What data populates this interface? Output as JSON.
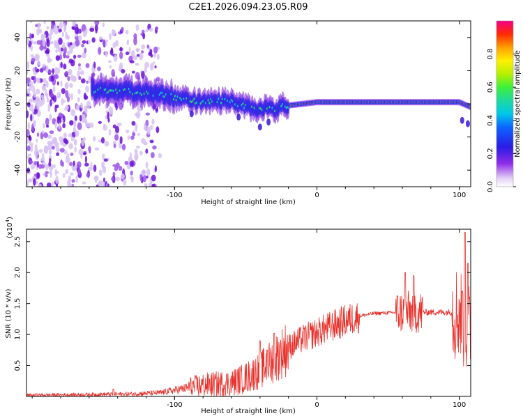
{
  "title": "C2E1.2026.094.23.05.R09",
  "chart_data": [
    {
      "type": "heatmap",
      "name": "spectrogram",
      "xlabel": "Height of straight line (km)",
      "ylabel": "Frequency (Hz)",
      "xlim": [
        -204,
        108
      ],
      "ylim": [
        -50,
        50
      ],
      "x_ticks": [
        -100,
        0,
        100
      ],
      "x_tick_labels": [
        "-100",
        "0",
        "100"
      ],
      "y_ticks": [
        -40,
        -20,
        0,
        20,
        40
      ],
      "y_tick_labels": [
        "-40",
        "-20",
        "0",
        "20",
        "40"
      ],
      "colorbar": {
        "label": "Normalized spectral amplitude",
        "range": [
          0,
          1
        ],
        "ticks": [
          0.0,
          0.2,
          0.4,
          0.6,
          0.8
        ],
        "tick_labels": [
          "0.0",
          "0.2",
          "0.4",
          "0.6",
          "0.8"
        ]
      },
      "band_center_hz": {
        "x": [
          -155,
          -140,
          -125,
          -110,
          -100,
          -90,
          -80,
          -70,
          -60,
          -50,
          -40,
          -30,
          -20,
          -10,
          0,
          20,
          40,
          60,
          80,
          100,
          108
        ],
        "y": [
          8,
          8,
          7,
          6,
          4,
          2,
          1,
          2,
          1,
          -2,
          -3,
          -3,
          -1,
          0,
          1,
          1,
          1,
          1,
          1,
          1,
          -2
        ]
      },
      "noise_region_x": [
        -204,
        -120
      ]
    },
    {
      "type": "line",
      "name": "snr",
      "xlabel": "Height of straight line (km)",
      "ylabel": "SNR (10 * v/v)",
      "y_multiplier_label": "(x10",
      "y_multiplier_exp": "4",
      "y_multiplier_close": ")",
      "xlim": [
        -204,
        108
      ],
      "ylim": [
        0,
        2.7
      ],
      "x_ticks": [
        -100,
        0,
        100
      ],
      "x_tick_labels": [
        "-100",
        "0",
        "100"
      ],
      "y_ticks": [
        0.5,
        1.0,
        1.5,
        2.0,
        2.5
      ],
      "y_tick_labels": [
        "0.5",
        "1.0",
        "1.5",
        "2.0",
        "2.5"
      ],
      "color": "#e8302a",
      "baseline_x": [
        -204,
        -160,
        -130,
        -110,
        -100,
        -90,
        -80,
        -70,
        -60,
        -50,
        -40,
        -30,
        -20,
        -10,
        0,
        10,
        20,
        30,
        40,
        50,
        60,
        70,
        80,
        90,
        100,
        108
      ],
      "baseline_y": [
        0.02,
        0.03,
        0.04,
        0.06,
        0.1,
        0.14,
        0.18,
        0.2,
        0.22,
        0.3,
        0.42,
        0.6,
        0.8,
        0.93,
        1.03,
        1.13,
        1.22,
        1.3,
        1.34,
        1.35,
        1.36,
        1.36,
        1.36,
        1.36,
        1.36,
        1.0
      ],
      "spike_peaks": [
        {
          "x": -143,
          "y": 0.12
        },
        {
          "x": -40,
          "y": 0.9
        },
        {
          "x": -35,
          "y": 0.75
        },
        {
          "x": -30,
          "y": 1.02
        },
        {
          "x": 62,
          "y": 2.0
        },
        {
          "x": 68,
          "y": 1.95
        },
        {
          "x": 102,
          "y": 1.7
        },
        {
          "x": 104,
          "y": 2.65
        },
        {
          "x": 106,
          "y": 2.15
        }
      ]
    }
  ]
}
